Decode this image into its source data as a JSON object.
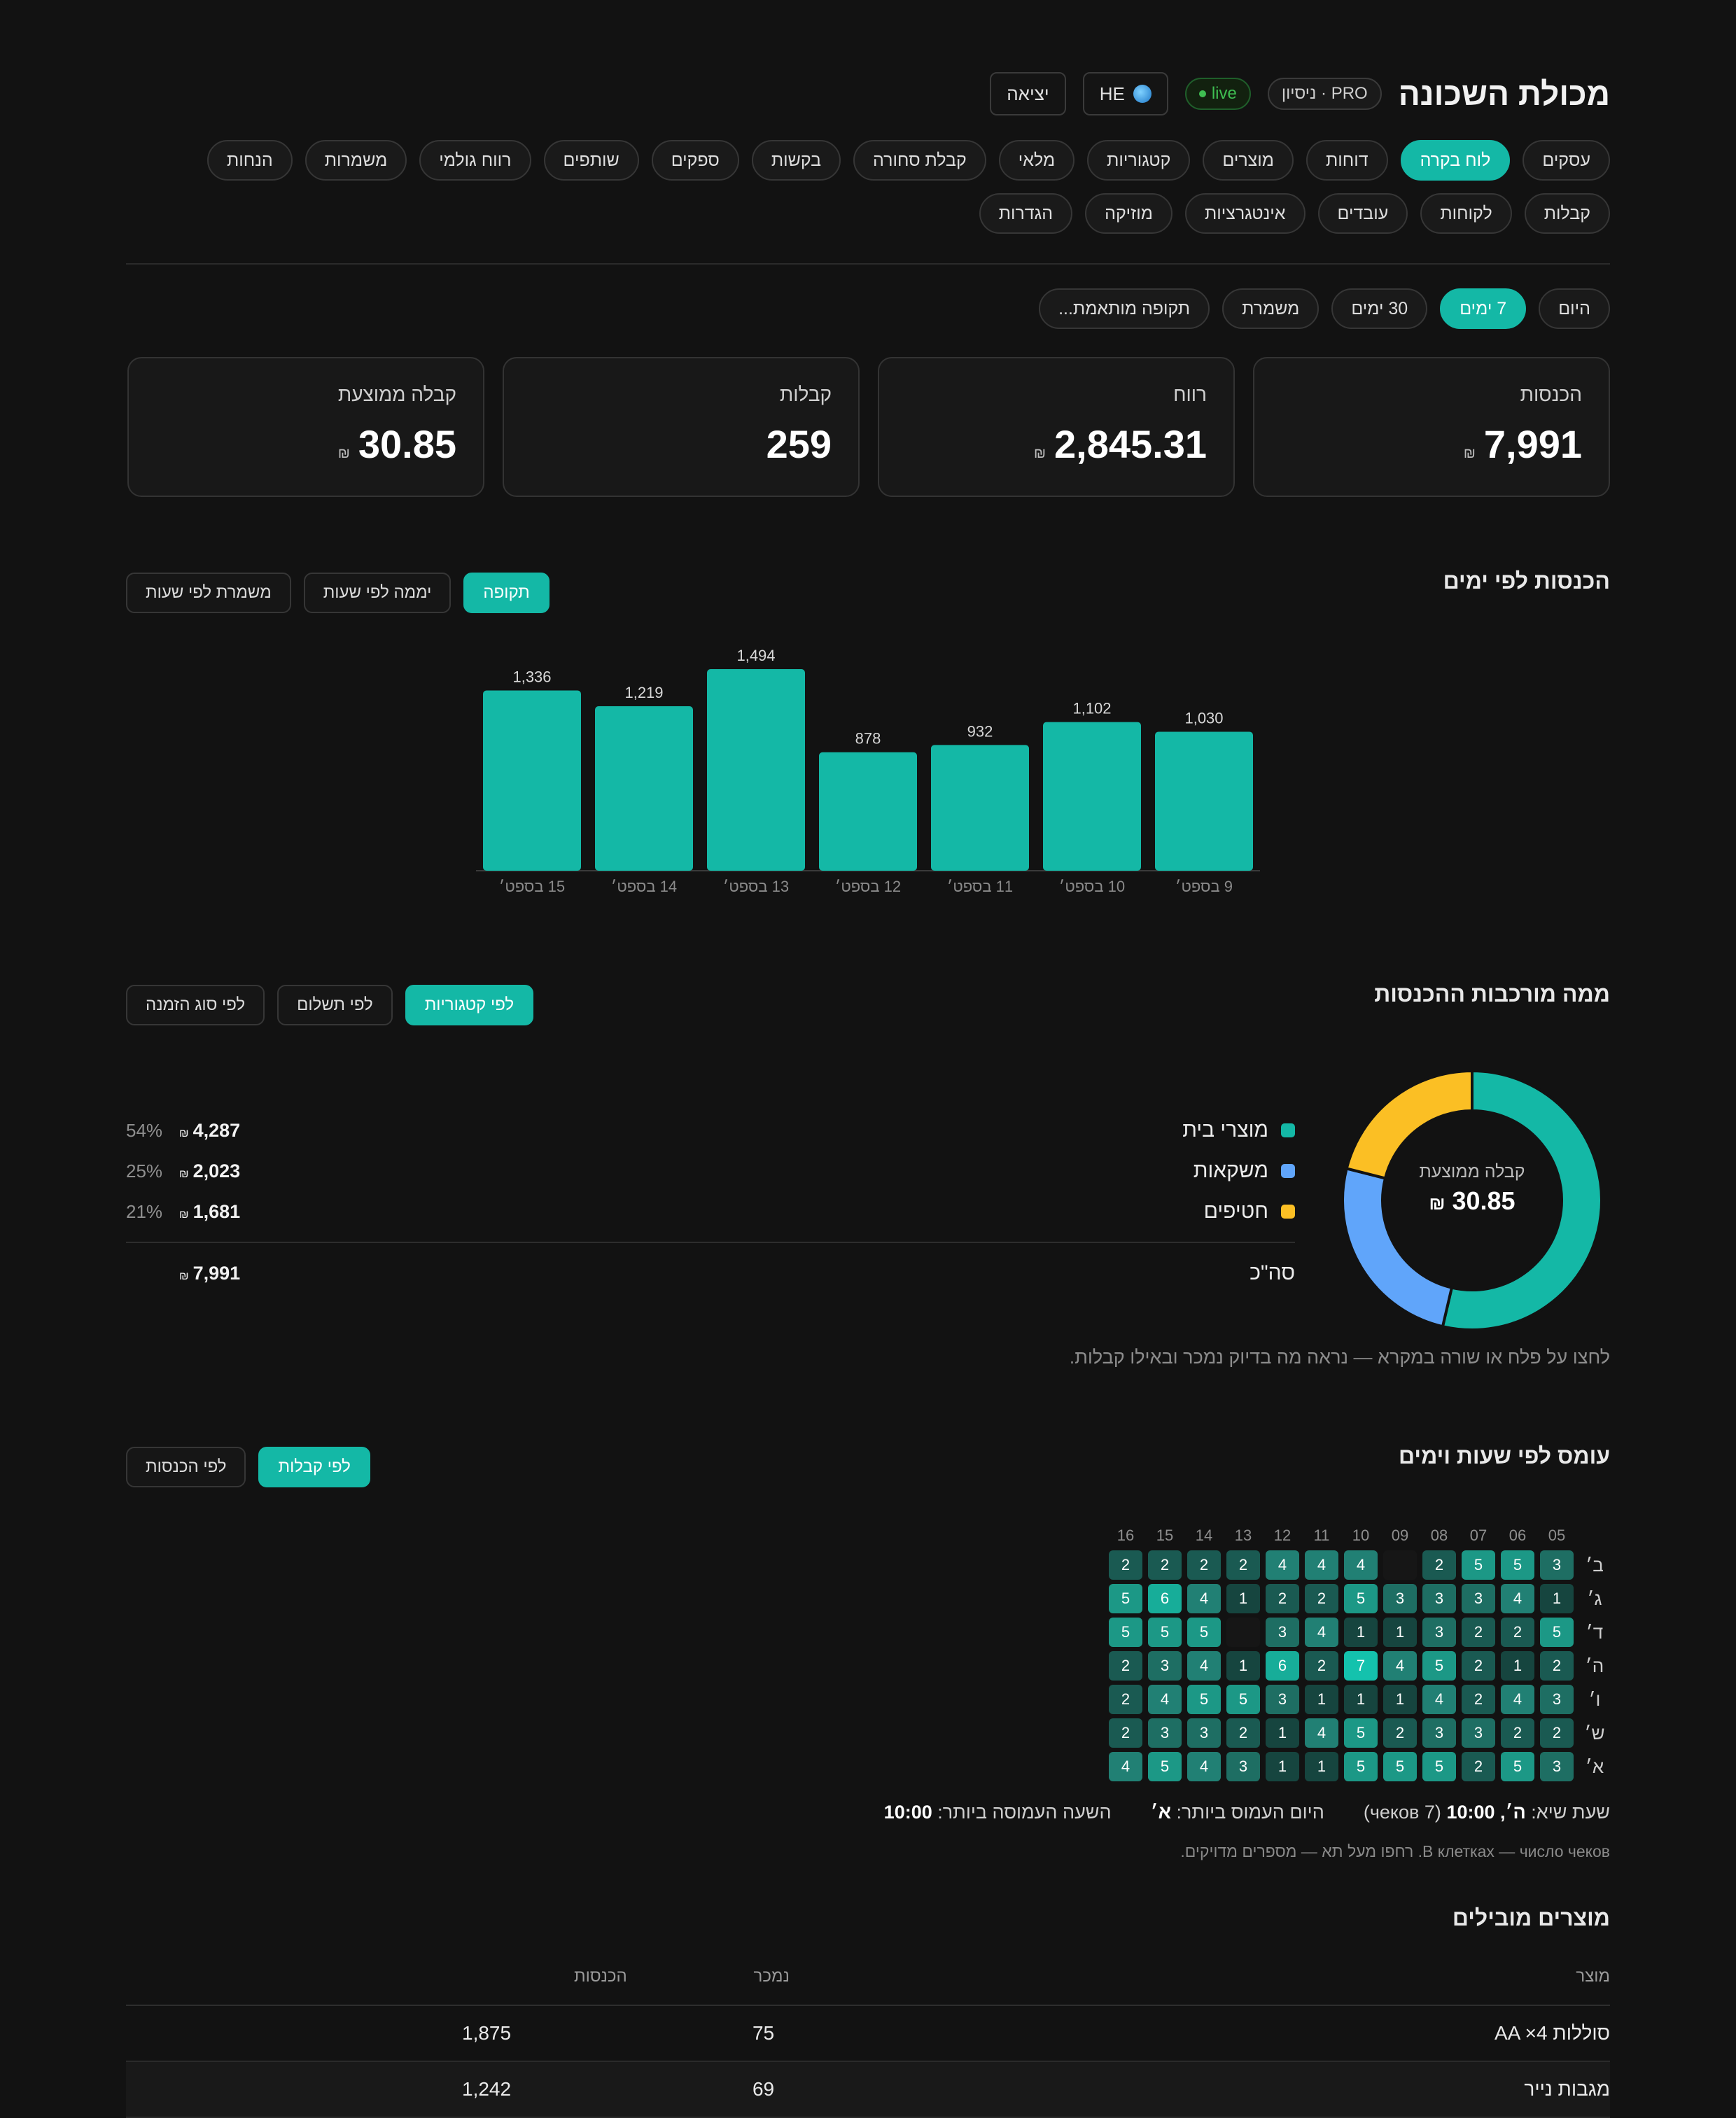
{
  "header": {
    "title": "מכולת השכונה",
    "plan_badge": "PRO · ניסיון",
    "live_badge": "live",
    "lang_button": "HE",
    "logout_button": "יציאה"
  },
  "nav": {
    "items": [
      "עסקים",
      "לוח בקרה",
      "דוחות",
      "מוצרים",
      "קטגוריות",
      "מלאי",
      "קבלת סחורה",
      "בקשות",
      "ספקים",
      "שותפים",
      "רווח גולמי",
      "משמרות",
      "הנחות",
      "קבלות",
      "לקוחות",
      "עובדים",
      "אינטגרציות",
      "מוזיקה",
      "הגדרות"
    ],
    "active_index": 1
  },
  "periods": {
    "items": [
      "היום",
      "7 ימים",
      "30 ימים",
      "משמרת",
      "תקופה מותאמת..."
    ],
    "active_index": 1
  },
  "kpis": [
    {
      "label": "הכנסות",
      "value": "7,991",
      "currency": "₪"
    },
    {
      "label": "רווח",
      "value": "2,845.31",
      "currency": "₪"
    },
    {
      "label": "קבלות",
      "value": "259",
      "currency": ""
    },
    {
      "label": "קבלה ממוצעת",
      "value": "30.85",
      "currency": "₪"
    }
  ],
  "revenue_section": {
    "title": "הכנסות לפי ימים",
    "tabs": [
      "תקופה",
      "יממה לפי שעות",
      "משמרת לפי שעות"
    ],
    "active_index": 0
  },
  "composition_section": {
    "title": "ממה מורכבות ההכנסות",
    "tabs": [
      "לפי קטגוריות",
      "לפי תשלום",
      "לפי סוג הזמנה"
    ],
    "active_index": 0,
    "center_label": "קבלה ממוצעת",
    "center_value": "30.85",
    "center_currency": "₪",
    "legend": [
      {
        "name": "מוצרי בית",
        "amount": "4,287",
        "pct": "54%",
        "color": "#14b8a6",
        "value": 4287
      },
      {
        "name": "משקאות",
        "amount": "2,023",
        "pct": "25%",
        "color": "#60a5fa",
        "value": 2023
      },
      {
        "name": "חטיפים",
        "amount": "1,681",
        "pct": "21%",
        "color": "#fbbf24",
        "value": 1681
      }
    ],
    "total_label": "סה\"כ",
    "total_amount": "7,991",
    "currency": "₪",
    "hint": "לחצו על פלח או שורה במקרא — נראה מה בדיוק נמכר ובאילו קבלות."
  },
  "chart_data": {
    "type": "bar",
    "categories": [
      "9 בספט׳",
      "10 בספט׳",
      "11 בספט׳",
      "12 בספט׳",
      "13 בספט׳",
      "14 בספט׳",
      "15 בספט׳"
    ],
    "values": [
      1030,
      1102,
      932,
      878,
      1494,
      1219,
      1336
    ],
    "value_labels": [
      "1,030",
      "1,102",
      "932",
      "878",
      "1,494",
      "1,219",
      "1,336"
    ],
    "ylim": [
      0,
      1494
    ],
    "bar_color": "#14b8a6"
  },
  "heatmap_section": {
    "title": "עומס לפי שעות וימים",
    "tabs": [
      "לפי קבלות",
      "לפי הכנסות"
    ],
    "active_index": 0,
    "hours": [
      "05",
      "06",
      "07",
      "08",
      "09",
      "10",
      "11",
      "12",
      "13",
      "14",
      "15",
      "16"
    ],
    "days": [
      "ב׳",
      "ג׳",
      "ד׳",
      "ה׳",
      "ו׳",
      "ש׳",
      "א׳"
    ],
    "grid": [
      [
        3,
        5,
        5,
        2,
        0,
        4,
        4,
        4,
        2,
        2,
        2,
        2
      ],
      [
        1,
        4,
        3,
        3,
        3,
        5,
        2,
        2,
        1,
        4,
        6,
        5
      ],
      [
        5,
        2,
        2,
        3,
        1,
        1,
        4,
        3,
        0,
        5,
        5,
        5
      ],
      [
        2,
        1,
        2,
        5,
        4,
        7,
        2,
        6,
        1,
        4,
        3,
        2
      ],
      [
        3,
        4,
        2,
        4,
        1,
        1,
        1,
        3,
        5,
        5,
        4,
        2
      ],
      [
        2,
        2,
        3,
        3,
        2,
        5,
        4,
        1,
        2,
        3,
        3,
        2
      ],
      [
        3,
        5,
        2,
        5,
        5,
        5,
        1,
        1,
        3,
        4,
        5,
        4
      ]
    ],
    "max_value": 7,
    "peak_label": "שעת שיא:",
    "peak_value": "ה׳, 10:00",
    "peak_detail": "(7 чеков)",
    "busiest_day_label": "היום העמוס ביותר:",
    "busiest_day_value": "א׳",
    "busiest_hour_label": "השעה העמוסה ביותר:",
    "busiest_hour_value": "10:00",
    "note": "В клетках — число чеков. רחפו מעל תא — מספרים מדויקים."
  },
  "products_section": {
    "title": "מוצרים מובילים",
    "columns": {
      "product": "מוצר",
      "sold": "נמכר",
      "revenue": "הכנסות"
    },
    "rows": [
      {
        "product": "סוללות AA ×4",
        "sold": "75",
        "revenue": "1,875"
      },
      {
        "product": "מגבות נייר",
        "sold": "69",
        "revenue": "1,242"
      }
    ]
  }
}
